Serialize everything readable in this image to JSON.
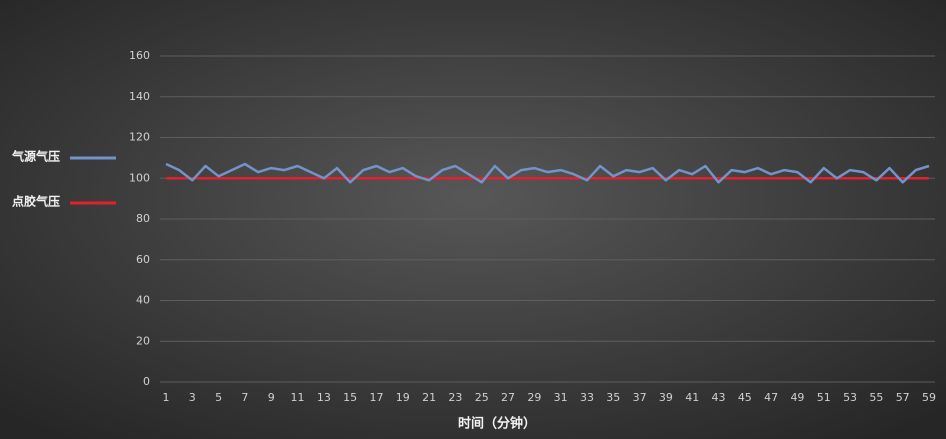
{
  "chart_data": {
    "type": "line",
    "x_label": "时间（分钟）",
    "categories": [
      1,
      null,
      3,
      null,
      5,
      null,
      7,
      null,
      9,
      null,
      11,
      null,
      13,
      null,
      15,
      null,
      17,
      null,
      19,
      null,
      21,
      null,
      23,
      null,
      25,
      null,
      27,
      null,
      29,
      null,
      31,
      null,
      33,
      null,
      35,
      null,
      37,
      null,
      39,
      null,
      41,
      null,
      43,
      null,
      45,
      null,
      47,
      null,
      49,
      null,
      51,
      null,
      53,
      null,
      55,
      null,
      57,
      null,
      59
    ],
    "series": [
      {
        "name": "气源气压",
        "color": "#7393c9",
        "values": [
          107,
          104,
          99,
          106,
          101,
          104,
          107,
          103,
          105,
          104,
          106,
          103,
          100,
          105,
          98,
          104,
          106,
          103,
          105,
          101,
          99,
          104,
          106,
          102,
          98,
          106,
          100,
          104,
          105,
          103,
          104,
          102,
          99,
          106,
          101,
          104,
          103,
          105,
          99,
          104,
          102,
          106,
          98,
          104,
          103,
          105,
          102,
          104,
          103,
          98,
          105,
          100,
          104,
          103,
          99,
          105,
          98,
          104,
          106
        ]
      },
      {
        "name": "点胶气压",
        "color": "#e3202c",
        "values": [
          100,
          100,
          100,
          100,
          100,
          100,
          100,
          100,
          100,
          100,
          100,
          100,
          100,
          100,
          100,
          100,
          100,
          100,
          100,
          100,
          100,
          100,
          100,
          100,
          100,
          100,
          100,
          100,
          100,
          100,
          100,
          100,
          100,
          100,
          100,
          100,
          100,
          100,
          100,
          100,
          100,
          100,
          100,
          100,
          100,
          100,
          100,
          100,
          100,
          100,
          100,
          100,
          100,
          100,
          100,
          100,
          100,
          100,
          100
        ]
      }
    ],
    "ylim": [
      0,
      160
    ],
    "yticks": [
      0,
      20,
      40,
      60,
      80,
      100,
      120,
      140,
      160
    ],
    "grid": true,
    "legend": "left"
  }
}
